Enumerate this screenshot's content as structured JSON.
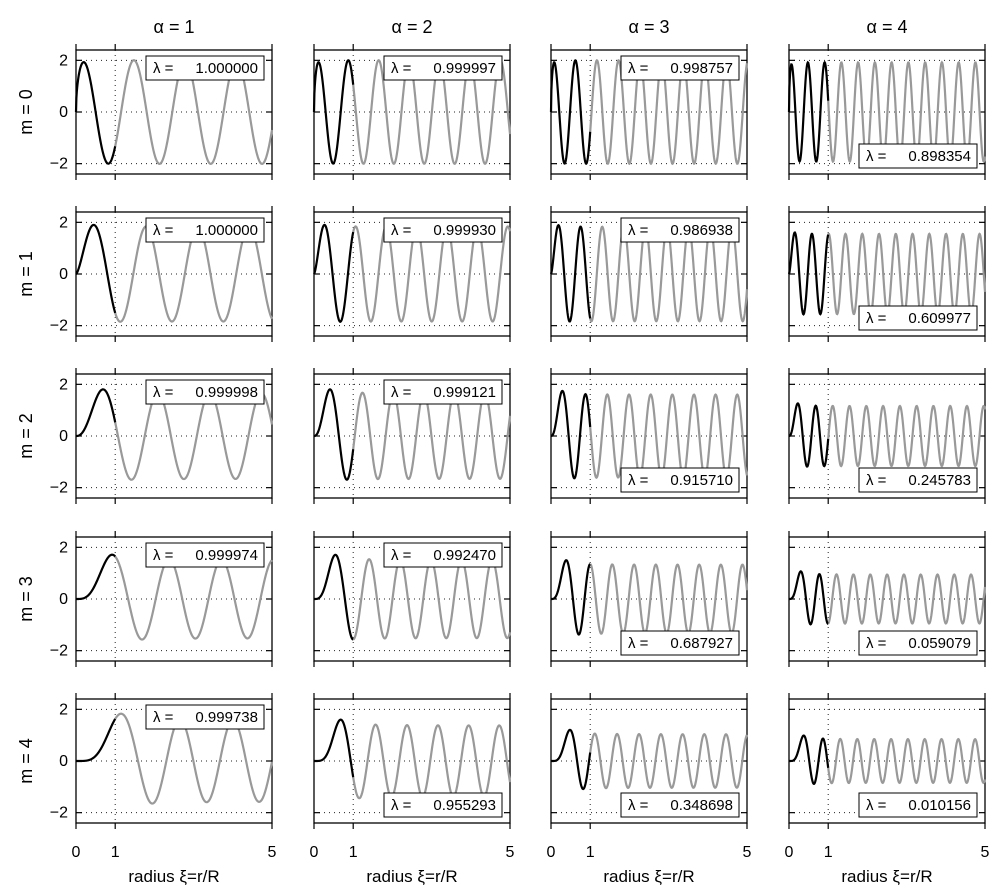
{
  "chart_data": {
    "type": "line",
    "grid_layout": {
      "rows": 5,
      "cols": 4
    },
    "column_labels": [
      "α = 1",
      "α = 2",
      "α = 3",
      "α = 4"
    ],
    "row_labels": [
      "m = 0",
      "m = 1",
      "m = 2",
      "m = 3",
      "m = 4"
    ],
    "alphas": [
      1,
      2,
      3,
      4
    ],
    "ms": [
      0,
      1,
      2,
      3,
      4
    ],
    "xlabel": "radius ξ=r/R",
    "xlim": [
      0,
      5
    ],
    "ylim": [
      -2.4,
      2.4
    ],
    "x_ticks": [
      0,
      1,
      5
    ],
    "x_tick_labels": [
      "0",
      "1",
      "5"
    ],
    "y_ticks": [
      -2,
      0,
      2
    ],
    "y_tick_labels": [
      "−2",
      "0",
      "2"
    ],
    "lambda_prefix": "λ =",
    "grid": "dotted",
    "colors": {
      "inside": "#000000",
      "outside": "#999999"
    },
    "lambda": [
      [
        "1.000000",
        "0.999997",
        "0.998757",
        "0.898354"
      ],
      [
        "1.000000",
        "0.999930",
        "0.986938",
        "0.609977"
      ],
      [
        "0.999998",
        "0.999121",
        "0.915710",
        "0.245783"
      ],
      [
        "0.999974",
        "0.992470",
        "0.687927",
        "0.059079"
      ],
      [
        "0.999738",
        "0.955293",
        "0.348698",
        "0.010156"
      ]
    ],
    "lambda_placement": [
      [
        "top",
        "top",
        "top",
        "bottom"
      ],
      [
        "top",
        "top",
        "top",
        "bottom"
      ],
      [
        "top",
        "top",
        "bottom",
        "bottom"
      ],
      [
        "top",
        "top",
        "bottom",
        "bottom"
      ],
      [
        "top",
        "bottom",
        "bottom",
        "bottom"
      ]
    ]
  }
}
